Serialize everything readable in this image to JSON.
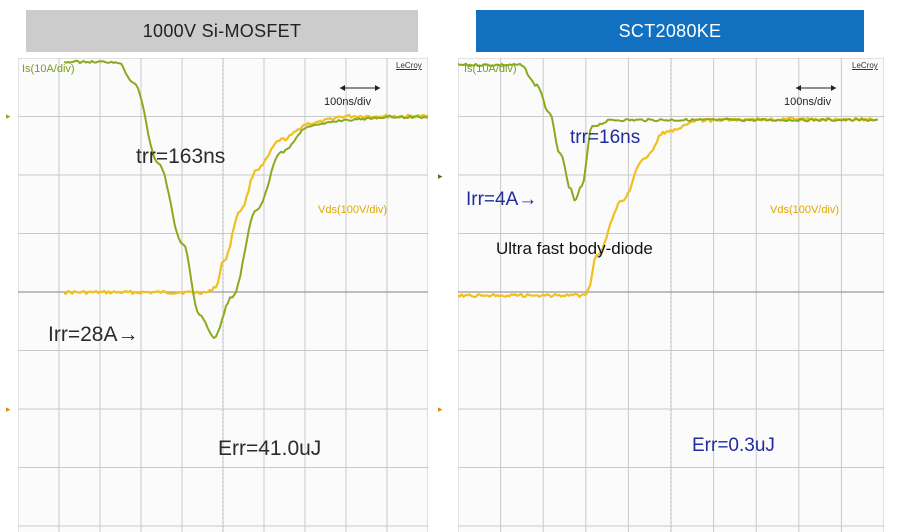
{
  "panels": [
    {
      "title": "1000V Si-MOSFET",
      "is_label": "Is(10A/div)",
      "vds_label": "Vds(100V/div)",
      "timebase": "100ns/div",
      "brand": "LeCroy",
      "trr_text": "trr=163ns",
      "irr_text": "Irr=28A→",
      "err_text": "Err=41.0uJ"
    },
    {
      "title": "SCT2080KE",
      "is_label": "Is(10A/div)",
      "vds_label": "Vds(100V/div)",
      "timebase": "100ns/div",
      "brand": "LeCroy",
      "trr_text": "trr=16ns",
      "irr_text": "Irr=4A→",
      "note_text": "Ultra fast body-diode",
      "err_text": "Err=0.3uJ"
    }
  ],
  "colors": {
    "is_trace": "#8aaa1e",
    "vds_trace": "#f0c020",
    "grid": "#c9c9c9",
    "header_left_bg": "#cccccc",
    "header_right_bg": "#1270c0",
    "annotation_blue": "#1f2c9c"
  },
  "chart_data": [
    {
      "type": "line",
      "title": "1000V Si-MOSFET",
      "x_unit": "ns",
      "x_div": 100,
      "series": [
        {
          "name": "Is(10A/div)",
          "x": [
            -290,
            -160,
            -120,
            -60,
            0,
            40,
            75,
            120,
            180,
            240,
            310,
            400,
            500,
            720
          ],
          "values": [
            19.5,
            19.5,
            16,
            2,
            -12,
            -24,
            -28,
            -21,
            -6,
            4,
            8.5,
            9.5,
            10,
            10
          ]
        },
        {
          "name": "Vds(100V/div)",
          "x": [
            -290,
            0,
            60,
            80,
            100,
            140,
            180,
            240,
            310,
            400,
            500,
            720
          ],
          "values": [
            -200,
            -200,
            -200,
            -190,
            -145,
            -60,
            10,
            60,
            88,
            100,
            100,
            100
          ]
        }
      ],
      "annotations": [
        "trr=163ns",
        "Irr=28A",
        "Err=41.0uJ"
      ]
    },
    {
      "type": "line",
      "title": "SCT2080KE",
      "x_unit": "ns",
      "x_div": 100,
      "series": [
        {
          "name": "Is(10A/div)",
          "x": [
            -280,
            -120,
            -80,
            -50,
            -25,
            0,
            8,
            25,
            50,
            100,
            200,
            720
          ],
          "values": [
            19.5,
            19.5,
            16,
            11,
            4,
            -2,
            -4,
            -1.5,
            9,
            10,
            10,
            10
          ]
        },
        {
          "name": "Vds(100V/div)",
          "x": [
            -280,
            0,
            35,
            40,
            60,
            120,
            170,
            220,
            300,
            400,
            720
          ],
          "values": [
            -200,
            -200,
            -200,
            -190,
            -130,
            -40,
            30,
            78,
            98,
            100,
            100
          ]
        }
      ],
      "annotations": [
        "trr=16ns",
        "Irr=4A",
        "Ultra fast body-diode",
        "Err=0.3uJ"
      ]
    }
  ]
}
